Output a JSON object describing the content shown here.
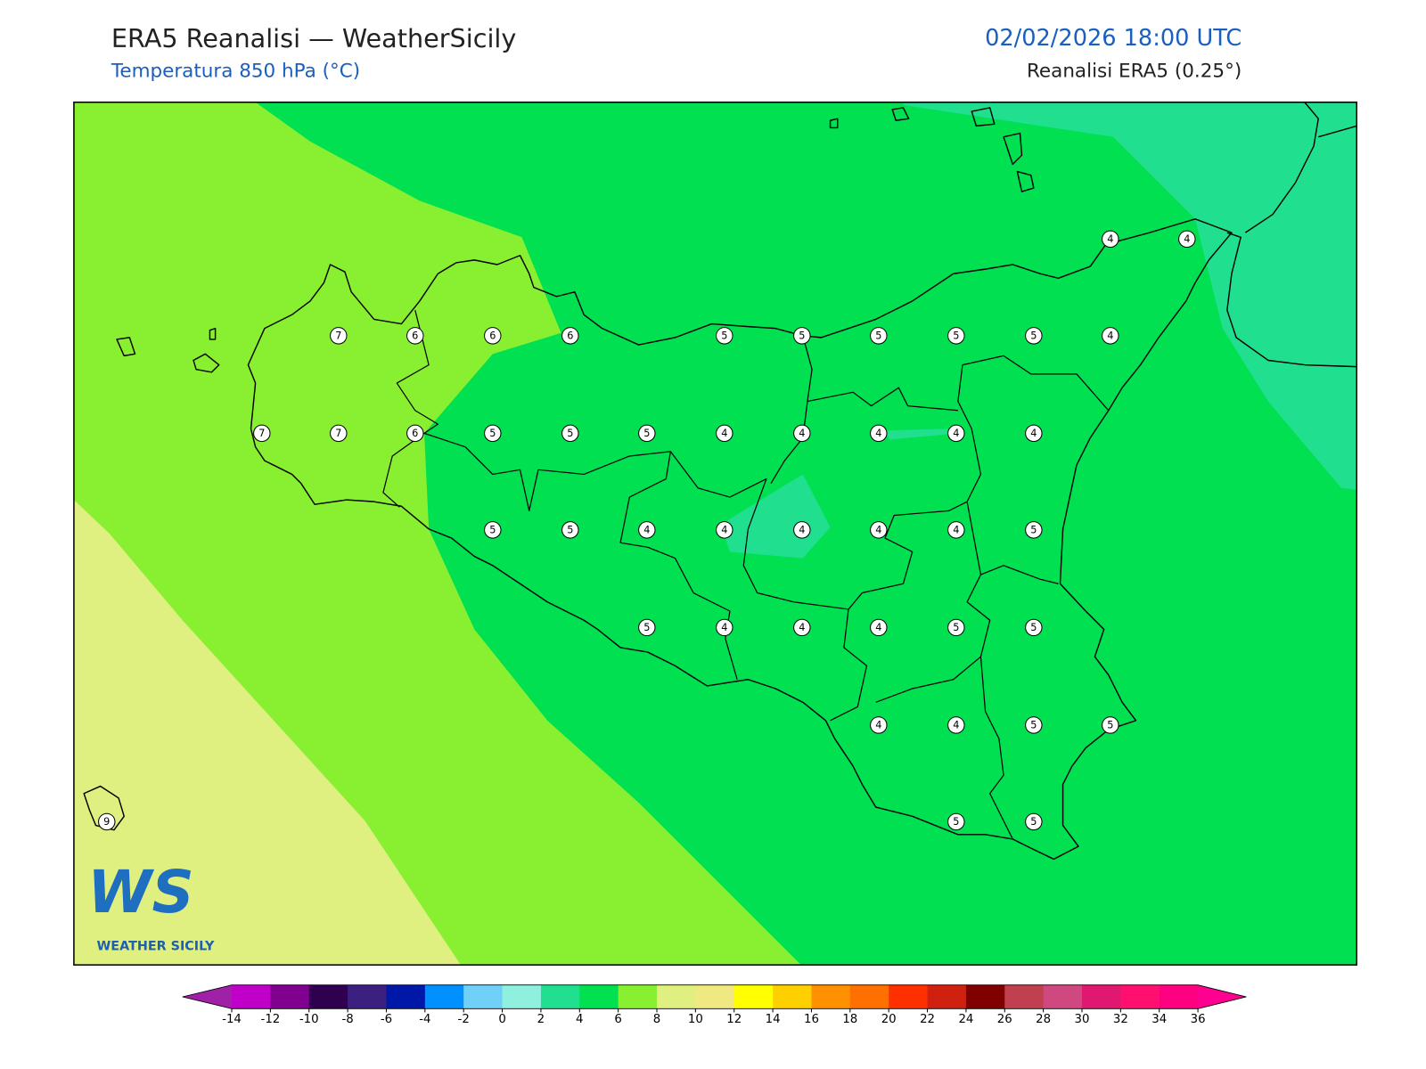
{
  "header": {
    "title": "ERA5 Reanalisi — WeatherSicily",
    "subtitle": "Temperatura 850 hPa (°C)",
    "datetime": "02/02/2026 18:00 UTC",
    "source": "Reanalisi ERA5 (0.25°)"
  },
  "map": {
    "stations": [
      4,
      4,
      7,
      6,
      6,
      6,
      5,
      5,
      5,
      5,
      5,
      4,
      7,
      7,
      6,
      5,
      5,
      5,
      4,
      4,
      4,
      4,
      4,
      5,
      5,
      4,
      4,
      4,
      4,
      4,
      5,
      5,
      4,
      4,
      4,
      5,
      5,
      4,
      4,
      5,
      5,
      5,
      5,
      9
    ]
  },
  "logo": {
    "mark": "WS",
    "text": "WEATHER SICILY"
  },
  "colorbar": {
    "ticks": [
      -14,
      -12,
      -10,
      -8,
      -6,
      -4,
      -2,
      0,
      2,
      4,
      6,
      8,
      10,
      12,
      14,
      16,
      18,
      20,
      22,
      24,
      26,
      28,
      30,
      32,
      34,
      36
    ],
    "colors": [
      "#c000c8",
      "#800090",
      "#300050",
      "#3c2080",
      "#0018a8",
      "#0090ff",
      "#70d0f8",
      "#90f0e0",
      "#20e090",
      "#00e050",
      "#88f030",
      "#e0f080",
      "#f0e880",
      "#ffff00",
      "#ffd000",
      "#ff9000",
      "#ff7000",
      "#ff3000",
      "#d02010",
      "#800000",
      "#c04050",
      "#d04880",
      "#e01870",
      "#ff1070",
      "#ff0080"
    ],
    "under_color": "#a020a8",
    "over_color": "#ff0090"
  }
}
